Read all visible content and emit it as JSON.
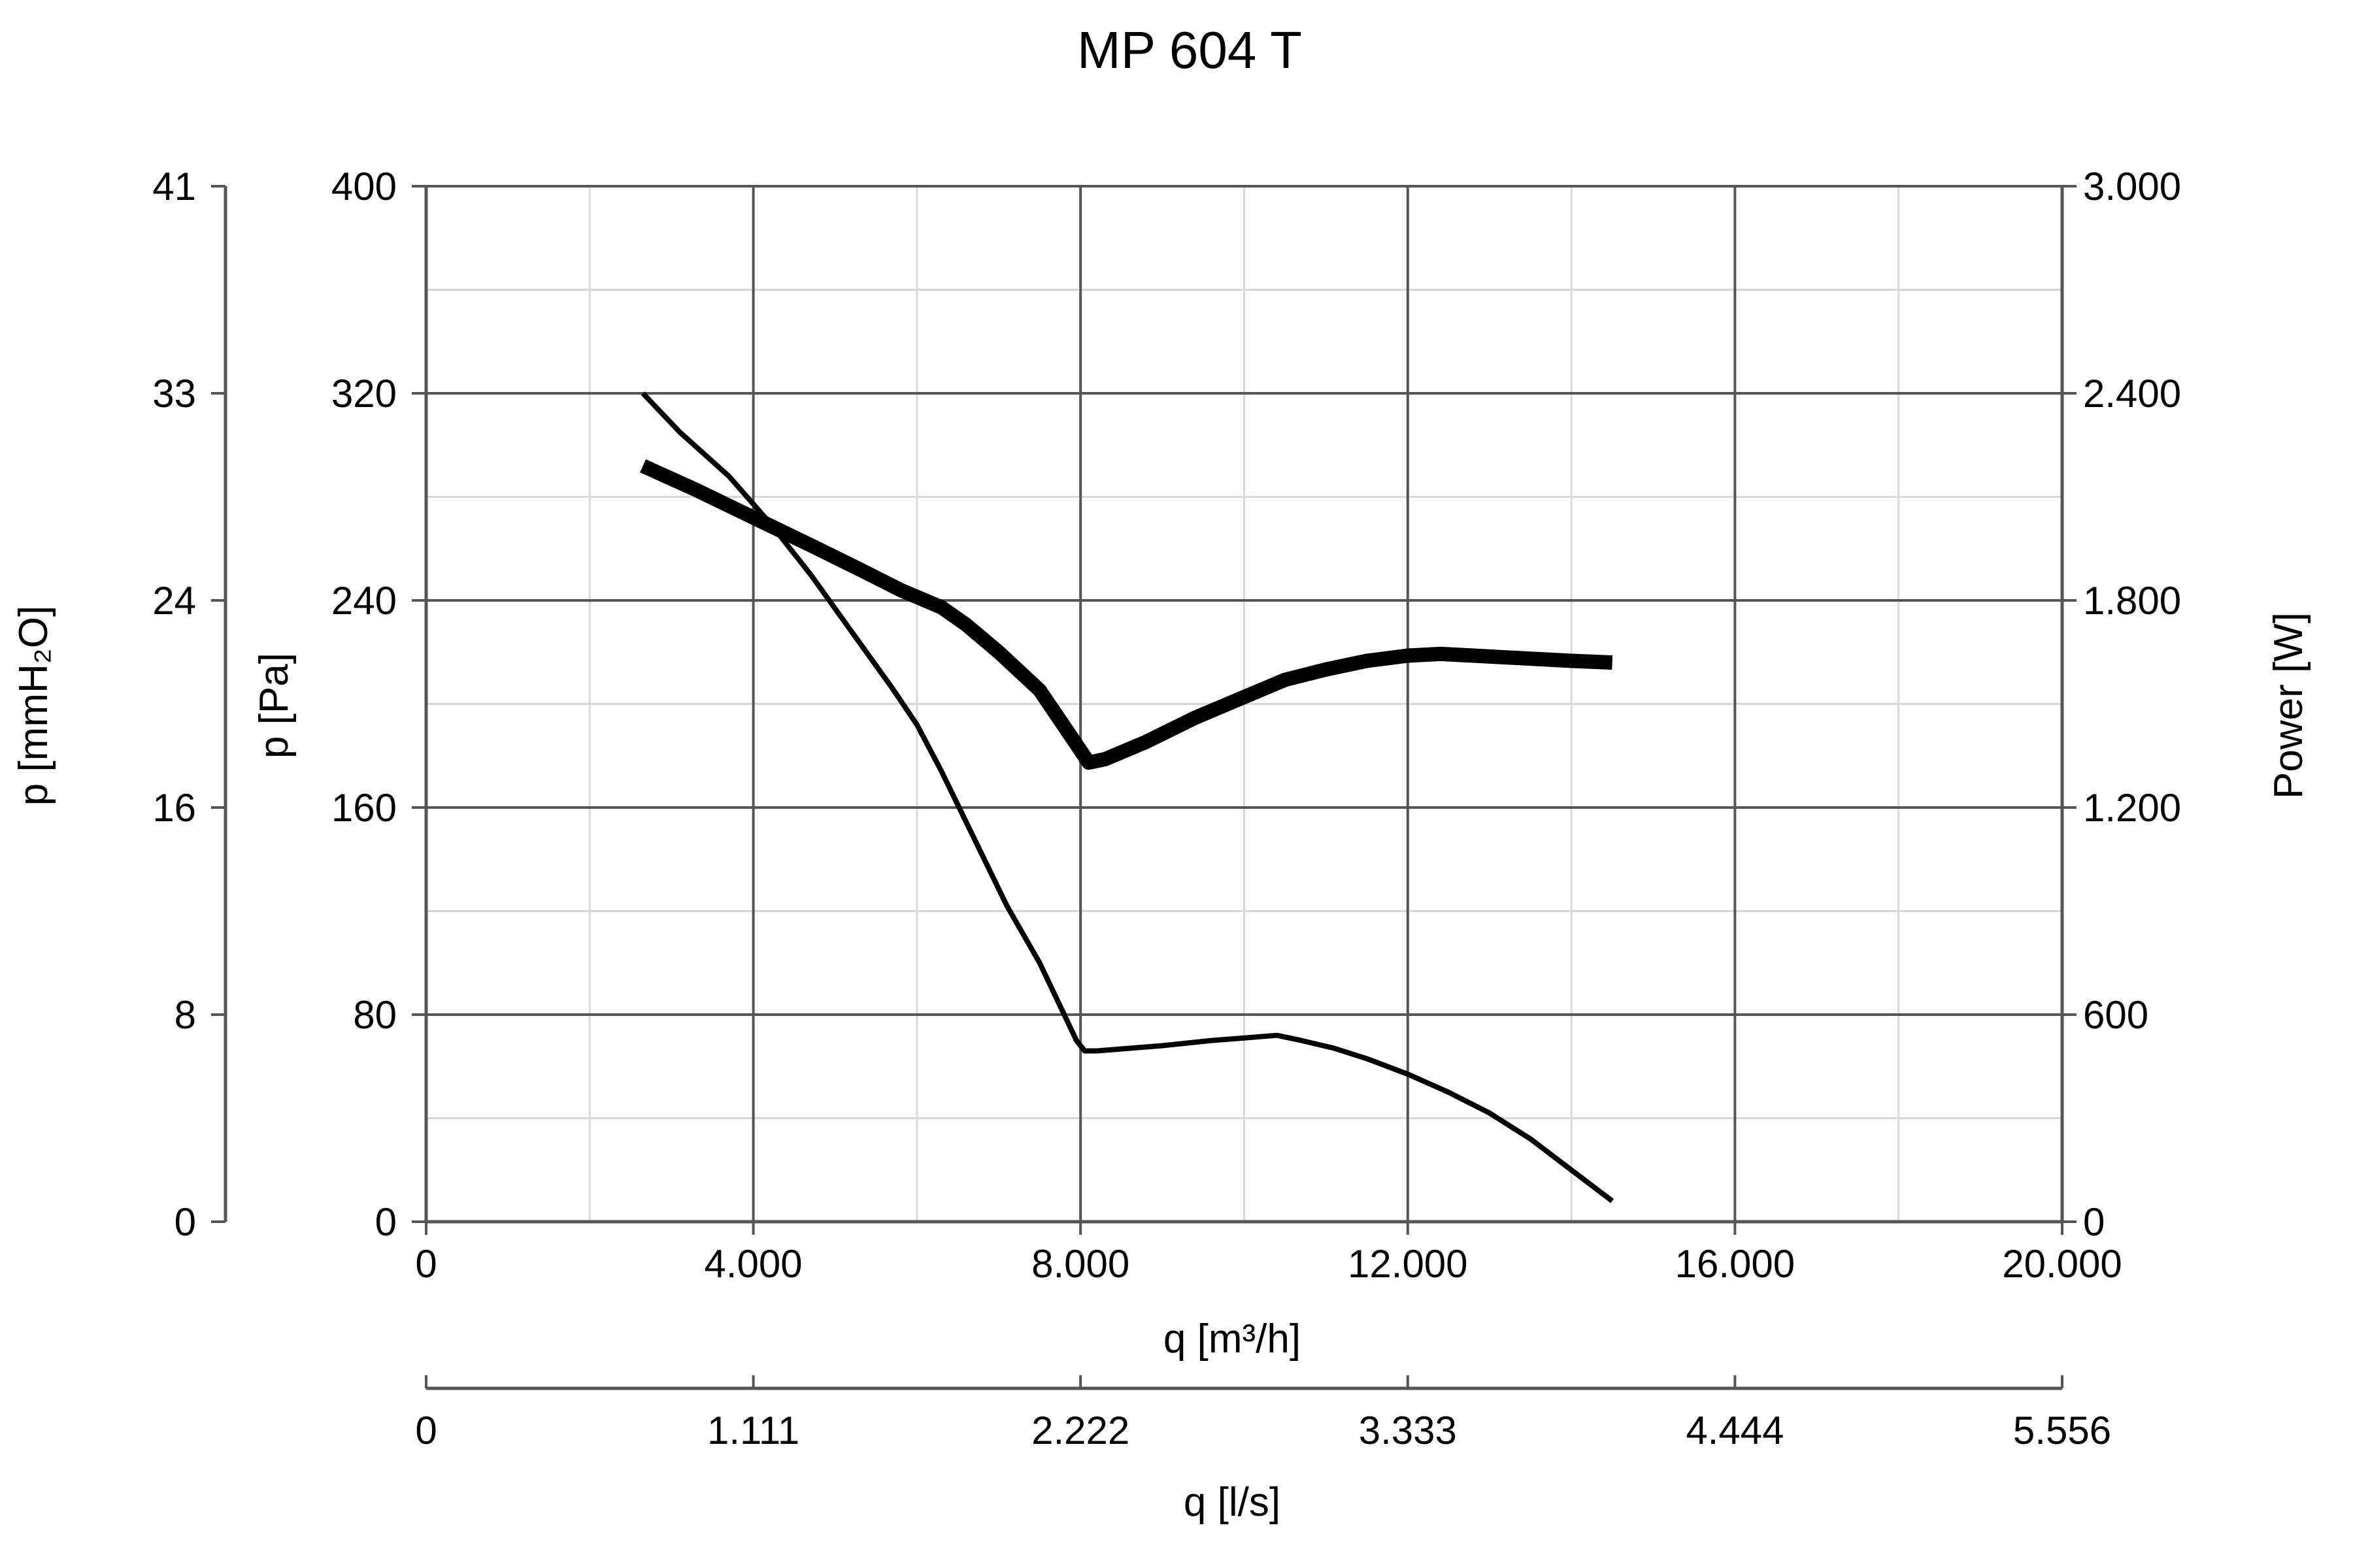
{
  "chart_data": {
    "type": "line",
    "title": "MP 604 T",
    "xlabel": "q [m³/h]",
    "x2label": "q [l/s]",
    "ylabel": "p [Pa]",
    "y2label": "p [mmH₂O]",
    "y3label": "Power [W]",
    "xlim": [
      0,
      20000
    ],
    "ylim": [
      0,
      400
    ],
    "power_lim": [
      0,
      3000
    ],
    "x_ticks": [
      "0",
      "4.000",
      "8.000",
      "12.000",
      "16.000",
      "20.000"
    ],
    "x2_ticks": [
      "0",
      "1.111",
      "2.222",
      "3.333",
      "4.444",
      "5.556"
    ],
    "y_ticks": [
      "0",
      "80",
      "160",
      "240",
      "320",
      "400"
    ],
    "y2_ticks": [
      "0",
      "8",
      "16",
      "24",
      "33",
      "41"
    ],
    "power_ticks": [
      "0",
      "600",
      "1.200",
      "1.800",
      "2.400",
      "3.000"
    ],
    "grid": true,
    "series": [
      {
        "axis": "pressure",
        "x": [
          2650,
          3100,
          3700,
          4200,
          4700,
          5200,
          5700,
          6000,
          6300,
          6700,
          7100,
          7500,
          7800,
          7950,
          8050,
          8200,
          8600,
          9000,
          9600,
          10000,
          10400,
          10700,
          11100,
          11500,
          12000,
          12500,
          13000,
          13500,
          14000,
          14500
        ],
        "values": [
          320,
          305,
          288,
          270,
          250,
          228,
          206,
          192,
          174,
          148,
          122,
          100,
          80,
          70,
          66,
          66,
          67,
          68,
          70,
          71,
          72,
          70,
          67,
          63,
          57,
          50,
          42,
          32,
          20,
          8
        ]
      },
      {
        "axis": "power",
        "x": [
          2650,
          3300,
          4000,
          4700,
          5300,
          5800,
          6300,
          6600,
          7000,
          7500,
          7900,
          8100,
          8300,
          8800,
          9400,
          10000,
          10500,
          11000,
          11500,
          12000,
          12400,
          12800,
          13200,
          13600,
          14000,
          14500
        ],
        "values": [
          2190,
          2120,
          2040,
          1960,
          1890,
          1830,
          1780,
          1730,
          1650,
          1540,
          1400,
          1330,
          1340,
          1390,
          1460,
          1520,
          1570,
          1600,
          1625,
          1640,
          1645,
          1640,
          1635,
          1630,
          1625,
          1620
        ]
      }
    ]
  }
}
